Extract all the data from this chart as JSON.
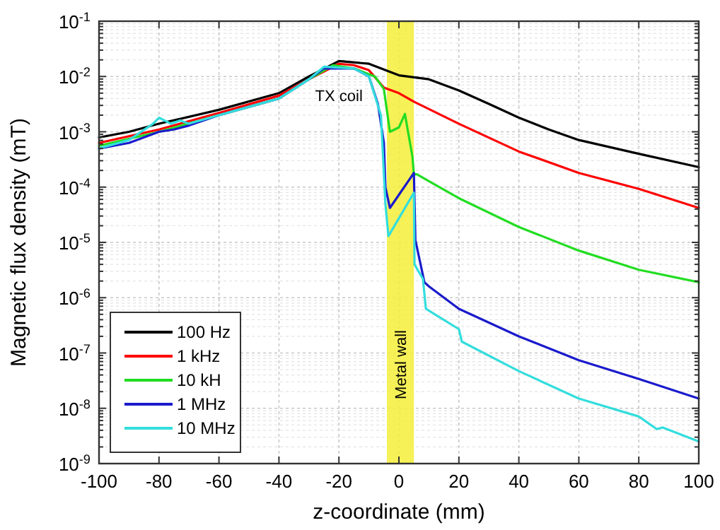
{
  "chart_data": {
    "type": "line",
    "xlabel": "z-coordinate (mm)",
    "ylabel": "Magnetic flux density (mT)",
    "log": "y",
    "grid": true,
    "legend": "bottom left",
    "line_style": "solid",
    "xlim": [
      -100,
      100
    ],
    "xticks": [
      -100,
      -80,
      -60,
      -40,
      -20,
      0,
      20,
      40,
      60,
      80,
      100
    ],
    "ylim": [
      1e-09,
      0.1
    ],
    "yticks": [
      {
        "value": 1e-09,
        "label": "10$^{-9}$"
      },
      {
        "value": 1e-08,
        "label": "10$^{-8}$"
      },
      {
        "value": 1e-07,
        "label": "10$^{-7}$"
      },
      {
        "value": 1e-06,
        "label": "10$^{-6}$"
      },
      {
        "value": 1e-05,
        "label": "10$^{-5}$"
      },
      {
        "value": 0.0001,
        "label": "10$^{-4}$"
      },
      {
        "value": 0.001,
        "label": "10$^{-3}$"
      },
      {
        "value": 0.01,
        "label": "10$^{-2}$"
      },
      {
        "value": 0.1,
        "label": "10$^{-1}$"
      }
    ],
    "bands": [
      {
        "axis": "x",
        "from": -4,
        "to": 5,
        "label": "Metal wall",
        "color": "#f5ee3a"
      }
    ],
    "annotations": [
      "TX coil"
    ],
    "series": [
      {
        "name": "100 Hz",
        "color": "#000000",
        "x": [
          -100,
          -90,
          -80,
          -60,
          -40,
          -30,
          -20,
          -10,
          0,
          10,
          20,
          30,
          40,
          50,
          60,
          80,
          100
        ],
        "values": [
          0.00079,
          0.001,
          0.0014,
          0.0025,
          0.005,
          0.01,
          0.019,
          0.017,
          0.0105,
          0.0089,
          0.0056,
          0.0032,
          0.0018,
          0.0011,
          0.00071,
          0.0004,
          0.00023
        ]
      },
      {
        "name": "1 kHz",
        "color": "#ff0000",
        "x": [
          -100,
          -80,
          -60,
          -40,
          -30,
          -20,
          -15,
          -10,
          -5,
          0,
          5,
          20,
          40,
          60,
          80,
          100
        ],
        "values": [
          0.00063,
          0.0011,
          0.0022,
          0.0045,
          0.0089,
          0.017,
          0.016,
          0.013,
          0.0063,
          0.005,
          0.0035,
          0.0014,
          0.00044,
          0.00018,
          9.3e-05,
          4.2e-05
        ]
      },
      {
        "name": "10 kH",
        "color": "#22dd22",
        "x": [
          -100,
          -80,
          -60,
          -40,
          -30,
          -22,
          -15,
          -10,
          -8,
          -5,
          -3,
          0,
          2,
          4.5,
          5,
          6,
          20,
          40,
          60,
          80,
          100
        ],
        "values": [
          0.00056,
          0.001,
          0.002,
          0.004,
          0.0089,
          0.016,
          0.014,
          0.011,
          0.01,
          0.0059,
          0.001,
          0.0012,
          0.0021,
          0.00036,
          0.00017,
          0.00017,
          6.3e-05,
          1.9e-05,
          7.1e-06,
          3.2e-06,
          1.9e-06
        ]
      },
      {
        "name": "1 MHz",
        "color": "#1a1acc",
        "x": [
          -100,
          -90,
          -80,
          -75,
          -70,
          -60,
          -40,
          -30,
          -25,
          -15,
          -10,
          -7,
          -5,
          -4.5,
          -3,
          5,
          5.5,
          8.5,
          10,
          20,
          40,
          60,
          80,
          100
        ],
        "values": [
          0.0005,
          0.00063,
          0.001,
          0.0011,
          0.0013,
          0.002,
          0.004,
          0.0089,
          0.014,
          0.014,
          0.01,
          0.0032,
          0.00063,
          0.0001,
          4.2e-05,
          0.00018,
          1.1e-05,
          1.9e-06,
          1.6e-06,
          6.3e-07,
          2e-07,
          7.4e-08,
          3.4e-08,
          1.5e-08
        ]
      },
      {
        "name": "10 MHz",
        "color": "#33dddd",
        "x": [
          -100,
          -90,
          -82,
          -80,
          -76,
          -73,
          -70,
          -60,
          -40,
          -30,
          -25,
          -15,
          -10,
          -6,
          -4.5,
          -3.5,
          5,
          5.2,
          8,
          9,
          12,
          20,
          21,
          40,
          60,
          80,
          86,
          88,
          100
        ],
        "values": [
          0.0005,
          0.00071,
          0.0014,
          0.0018,
          0.0014,
          0.0016,
          0.0014,
          0.002,
          0.004,
          0.0089,
          0.015,
          0.014,
          0.01,
          0.002,
          5e-05,
          1.3e-05,
          7.9e-05,
          4e-06,
          2.2e-06,
          6.3e-07,
          5e-07,
          2.7e-07,
          1.6e-07,
          4.7e-08,
          1.5e-08,
          7.1e-09,
          4.2e-09,
          4.5e-09,
          2.5e-09
        ]
      }
    ]
  }
}
